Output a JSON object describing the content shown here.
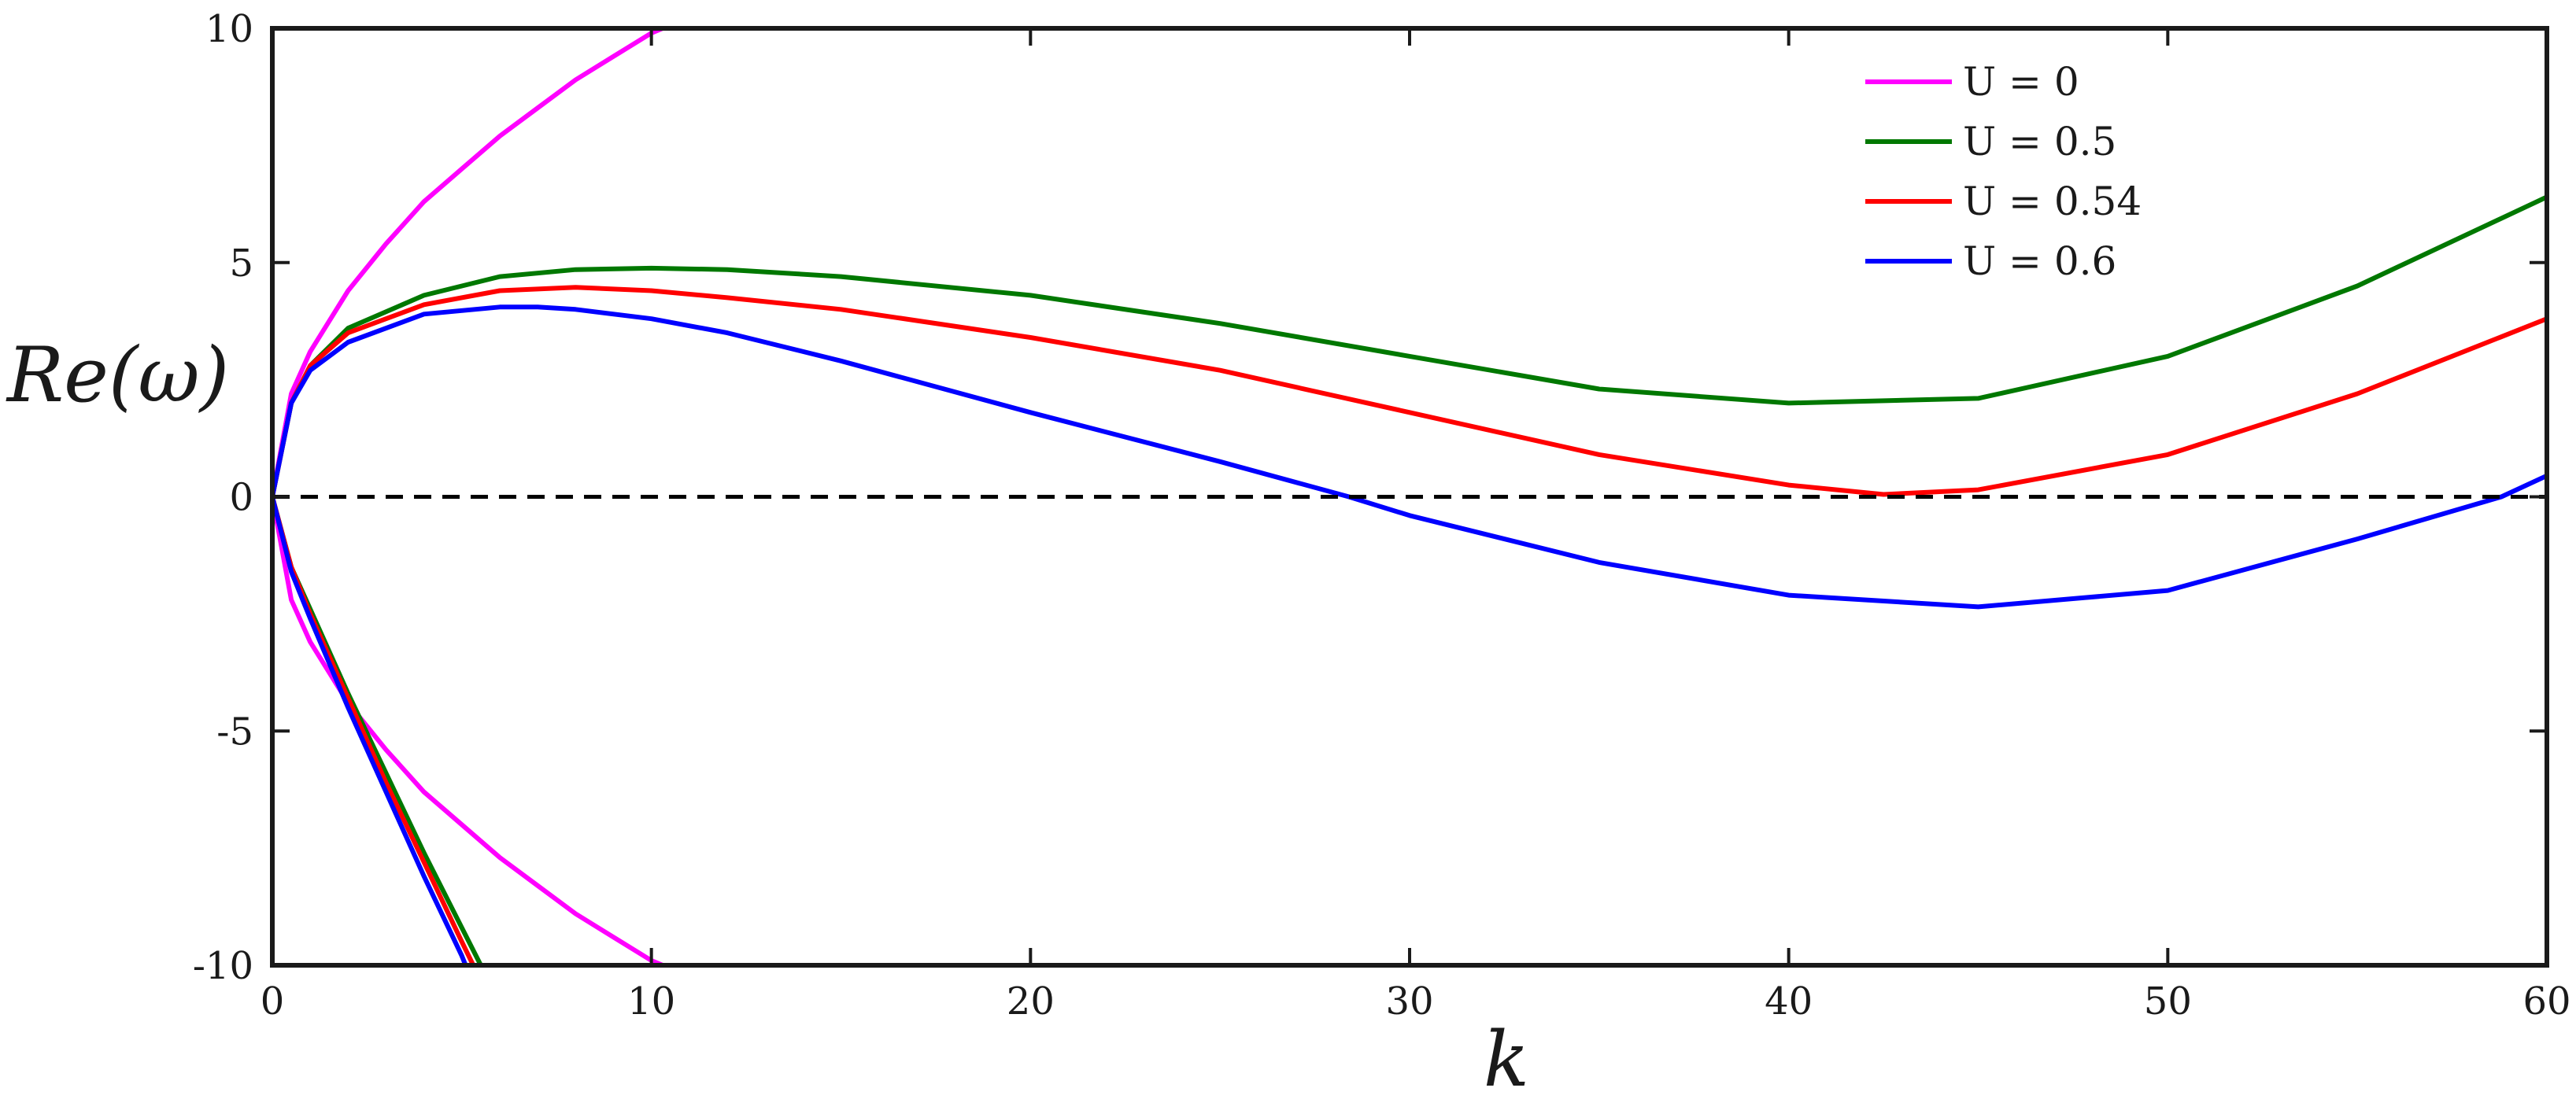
{
  "chart_data": {
    "type": "line",
    "title": "",
    "xlabel": "k",
    "ylabel": "Re(ω)",
    "xlim": [
      0,
      60
    ],
    "ylim": [
      -10,
      10
    ],
    "xticks": [
      "0",
      "10",
      "20",
      "30",
      "40",
      "50",
      "60"
    ],
    "yticks": [
      "-10",
      "-5",
      "0",
      "5",
      "10"
    ],
    "grid": false,
    "legend_position": "top-right",
    "reference_line": {
      "y": 0,
      "style": "dashed",
      "color": "#000000"
    },
    "series": [
      {
        "name": "U = 0",
        "color": "#ff00ff",
        "branches": [
          {
            "x": [
              0,
              0.5,
              1,
              2,
              3,
              4,
              5,
              6,
              7,
              8,
              9,
              10,
              10.3
            ],
            "y": [
              0,
              2.2,
              3.1,
              4.4,
              5.4,
              6.3,
              7.0,
              7.7,
              8.3,
              8.9,
              9.4,
              9.9,
              10.0
            ]
          },
          {
            "x": [
              0,
              0.5,
              1,
              2,
              3,
              4,
              5,
              6,
              7,
              8,
              9,
              10,
              10.3
            ],
            "y": [
              0,
              -2.2,
              -3.1,
              -4.4,
              -5.4,
              -6.3,
              -7.0,
              -7.7,
              -8.3,
              -8.9,
              -9.4,
              -9.9,
              -10.0
            ]
          }
        ]
      },
      {
        "name": "U = 0.5",
        "color": "#007800",
        "branches": [
          {
            "x": [
              0,
              0.5,
              1,
              2,
              4,
              6,
              8,
              10,
              12,
              15,
              20,
              25,
              30,
              35,
              40,
              45,
              50,
              55,
              60
            ],
            "y": [
              0,
              2.0,
              2.8,
              3.6,
              4.3,
              4.7,
              4.85,
              4.88,
              4.85,
              4.7,
              4.3,
              3.7,
              3.0,
              2.3,
              2.0,
              2.1,
              3.0,
              4.5,
              6.4
            ]
          },
          {
            "x": [
              0,
              0.5,
              1,
              2,
              3,
              4,
              5,
              5.5
            ],
            "y": [
              0,
              -1.5,
              -2.4,
              -4.2,
              -5.9,
              -7.6,
              -9.2,
              -10.0
            ]
          }
        ]
      },
      {
        "name": "U = 0.54",
        "color": "#ff0000",
        "branches": [
          {
            "x": [
              0,
              0.5,
              1,
              2,
              4,
              6,
              8,
              10,
              12,
              15,
              20,
              25,
              30,
              35,
              40,
              42.5,
              45,
              50,
              55,
              60
            ],
            "y": [
              0,
              2.0,
              2.8,
              3.5,
              4.1,
              4.4,
              4.47,
              4.4,
              4.25,
              4.0,
              3.4,
              2.7,
              1.8,
              0.9,
              0.25,
              0.05,
              0.15,
              0.9,
              2.2,
              3.8
            ]
          },
          {
            "x": [
              0,
              0.5,
              1,
              2,
              3,
              4,
              5,
              5.3
            ],
            "y": [
              0,
              -1.5,
              -2.5,
              -4.3,
              -6.1,
              -7.8,
              -9.5,
              -10.0
            ]
          }
        ]
      },
      {
        "name": "U = 0.6",
        "color": "#0000ff",
        "branches": [
          {
            "x": [
              0,
              0.5,
              1,
              2,
              4,
              6,
              7,
              8,
              10,
              12,
              15,
              20,
              25,
              28.4,
              30,
              35,
              40,
              45,
              50,
              55,
              58.8,
              60
            ],
            "y": [
              0,
              2.0,
              2.7,
              3.3,
              3.9,
              4.05,
              4.05,
              4.0,
              3.8,
              3.5,
              2.9,
              1.8,
              0.75,
              0.0,
              -0.4,
              -1.4,
              -2.1,
              -2.35,
              -2.0,
              -0.9,
              0.0,
              0.45
            ]
          },
          {
            "x": [
              0,
              0.5,
              1,
              2,
              3,
              4,
              5,
              5.1
            ],
            "y": [
              0,
              -1.6,
              -2.6,
              -4.5,
              -6.3,
              -8.1,
              -9.8,
              -10.0
            ]
          }
        ]
      }
    ]
  }
}
